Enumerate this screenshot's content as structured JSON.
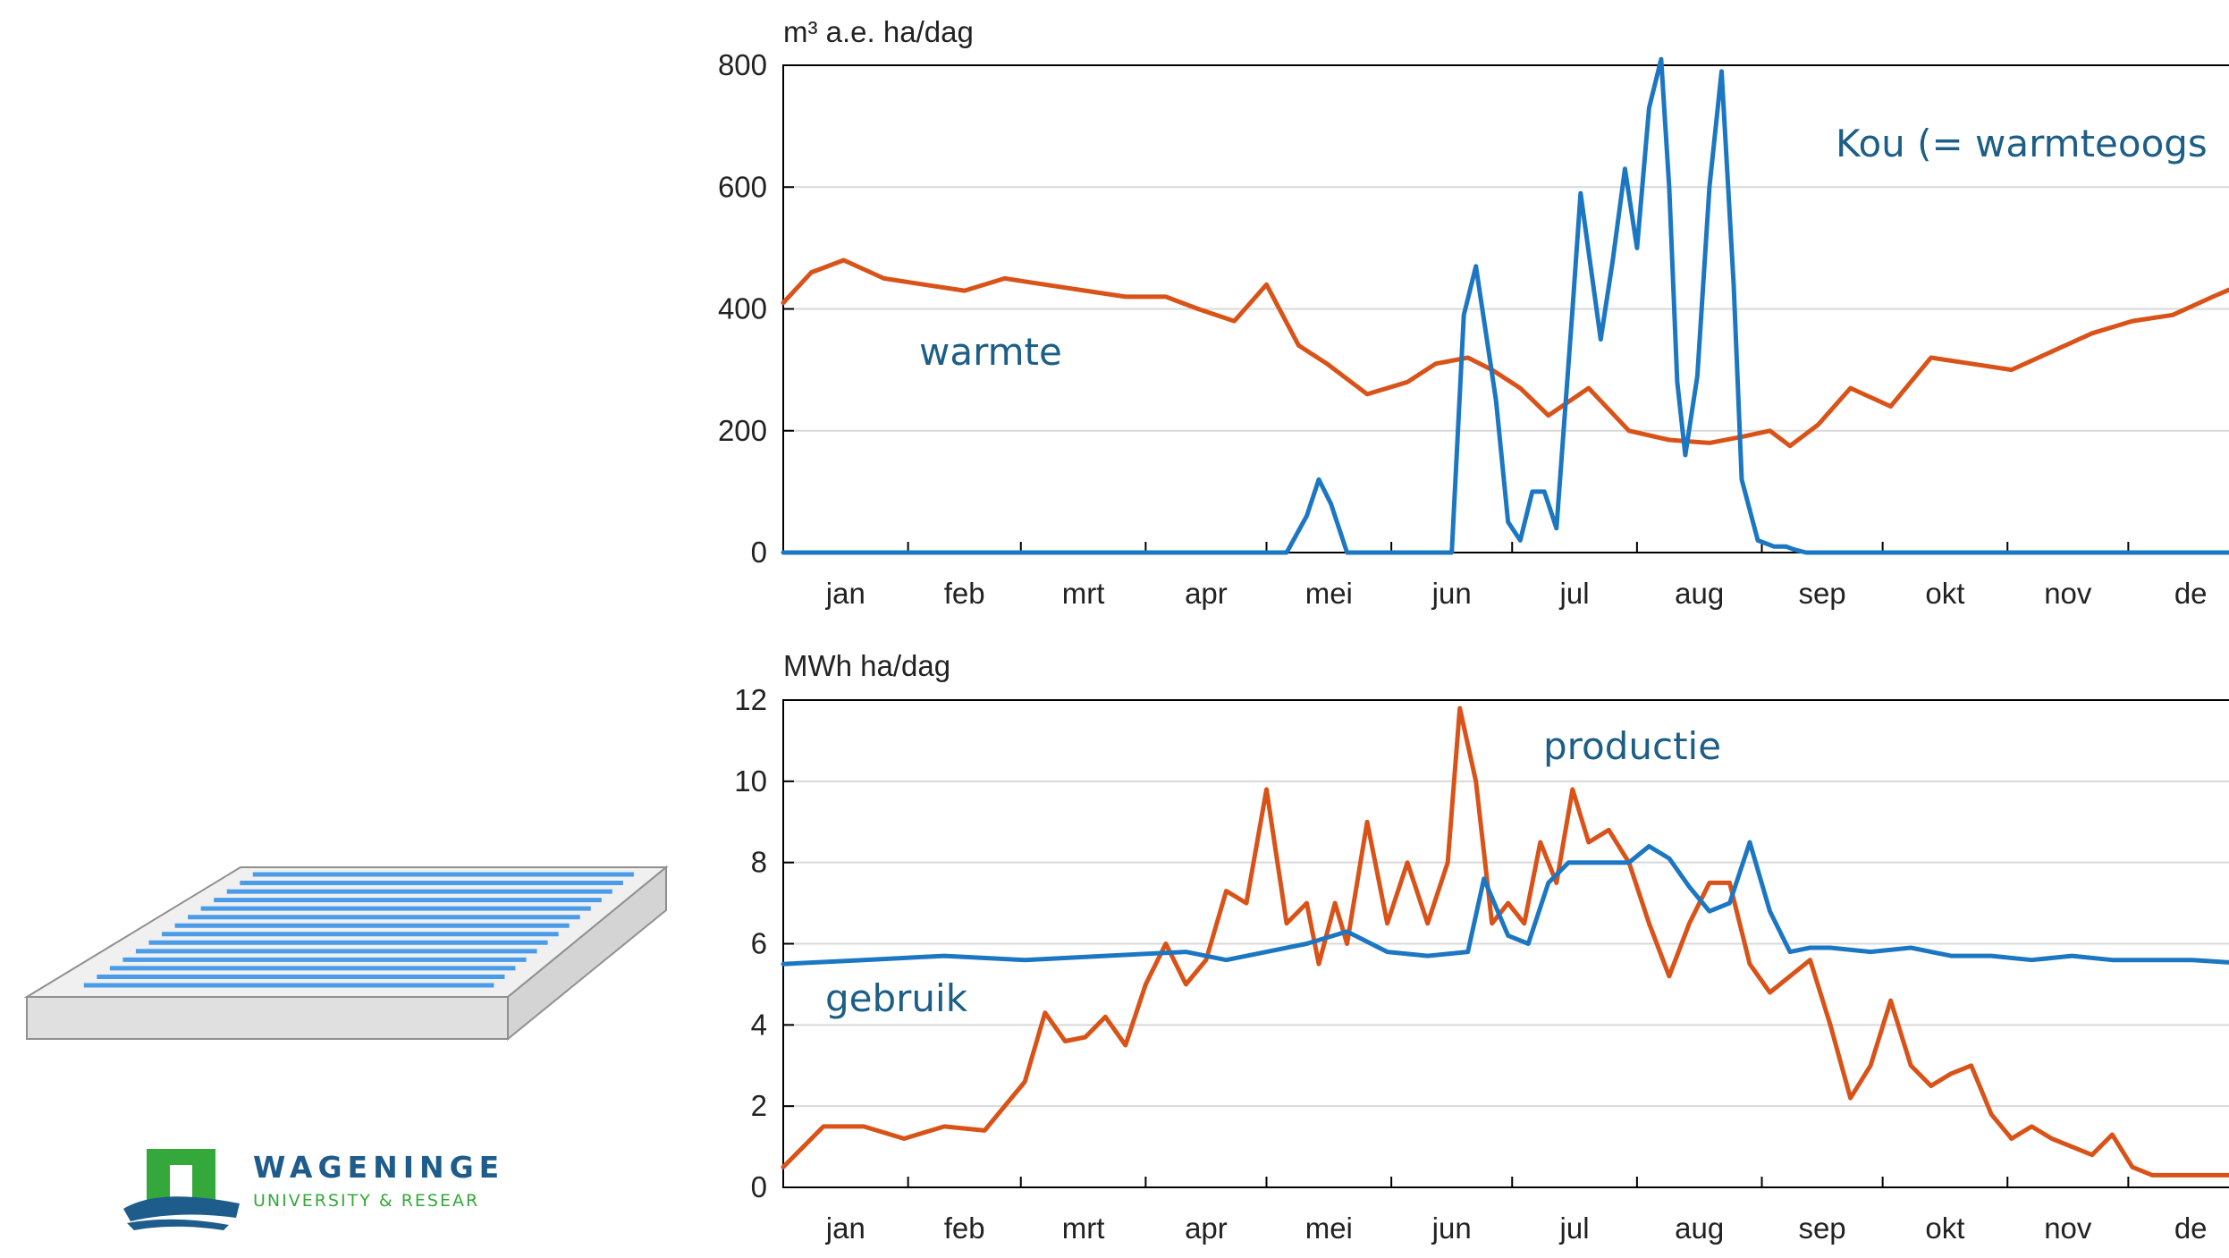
{
  "logo": {
    "line1": "WAGENINGE",
    "line2": "UNIVERSITY & RESEAR",
    "colors": {
      "green": "#34A83A",
      "blue": "#1E5C8C",
      "text": "#1E5C8C"
    }
  },
  "illustration": {
    "name": "greenhouse-roof-block",
    "stripe_color": "#4A9BE8",
    "box_color": "#E6E6E6"
  },
  "chart_data": [
    {
      "type": "line",
      "ylabel": "m³ a.e. ha/dag",
      "ylim": [
        0,
        800
      ],
      "yticks": [
        "0",
        "200",
        "400",
        "600",
        "800"
      ],
      "xticks": [
        "jan",
        "feb",
        "mrt",
        "apr",
        "mei",
        "jun",
        "jul",
        "aug",
        "sep",
        "okt",
        "nov",
        "dec"
      ],
      "xticks_visible": [
        "jan",
        "feb",
        "mrt",
        "apr",
        "mei",
        "jun",
        "jul",
        "aug",
        "sep",
        "okt",
        "nov",
        "de"
      ],
      "xlim_day": [
        0,
        365
      ],
      "grid": true,
      "series": [
        {
          "name": "warmte",
          "color": "#D95319",
          "x": [
            0,
            7,
            15,
            25,
            35,
            45,
            55,
            65,
            75,
            85,
            95,
            103,
            112,
            120,
            128,
            135,
            145,
            155,
            162,
            170,
            176,
            183,
            190,
            200,
            210,
            220,
            230,
            238,
            245,
            250,
            257,
            265,
            275,
            285,
            295,
            305,
            315,
            325,
            335,
            345,
            355,
            362
          ],
          "y": [
            410,
            460,
            480,
            450,
            440,
            430,
            450,
            440,
            430,
            420,
            420,
            400,
            380,
            440,
            340,
            310,
            260,
            280,
            310,
            320,
            300,
            270,
            225,
            270,
            200,
            185,
            180,
            190,
            200,
            175,
            210,
            270,
            240,
            320,
            310,
            300,
            330,
            360,
            380,
            390,
            420,
            440
          ]
        },
        {
          "name": "Kou (= warmteoogst)",
          "color": "#1C77C3",
          "x": [
            0,
            125,
            130,
            133,
            136,
            140,
            145,
            155,
            166,
            169,
            172,
            177,
            180,
            183,
            186,
            189,
            192,
            196,
            198,
            203,
            206,
            209,
            212,
            215,
            218,
            220,
            222,
            224,
            227,
            230,
            233,
            236,
            238,
            242,
            246,
            249,
            251,
            254,
            256,
            258,
            264,
            270,
            365
          ],
          "y": [
            0,
            0,
            60,
            120,
            80,
            0,
            0,
            0,
            0,
            390,
            470,
            250,
            50,
            20,
            100,
            100,
            40,
            400,
            590,
            350,
            480,
            630,
            500,
            730,
            810,
            600,
            280,
            160,
            290,
            600,
            790,
            440,
            120,
            20,
            10,
            10,
            5,
            0,
            0,
            0,
            0,
            0,
            0
          ]
        }
      ],
      "annotations": [
        {
          "text": "warmte",
          "color": "#1C5E86"
        },
        {
          "text": "Kou (= warmteoogst)",
          "text_visible": "Kou (= warmteoogs",
          "color": "#1C5E86"
        }
      ]
    },
    {
      "type": "line",
      "ylabel": "MWh ha/dag",
      "ylim": [
        0,
        12
      ],
      "yticks": [
        "0",
        "2",
        "4",
        "6",
        "8",
        "10",
        "12"
      ],
      "xticks": [
        "jan",
        "feb",
        "mrt",
        "apr",
        "mei",
        "jun",
        "jul",
        "aug",
        "sep",
        "okt",
        "nov",
        "dec"
      ],
      "xticks_visible": [
        "jan",
        "feb",
        "mrt",
        "apr",
        "mei",
        "jun",
        "jul",
        "aug",
        "sep",
        "okt",
        "nov",
        "de"
      ],
      "xlim_day": [
        0,
        365
      ],
      "grid": true,
      "series": [
        {
          "name": "productie",
          "color": "#D95319",
          "x": [
            0,
            10,
            20,
            30,
            40,
            50,
            60,
            65,
            70,
            75,
            80,
            85,
            90,
            95,
            100,
            105,
            110,
            115,
            120,
            125,
            130,
            133,
            137,
            140,
            145,
            150,
            155,
            160,
            165,
            168,
            172,
            176,
            180,
            184,
            188,
            192,
            196,
            200,
            205,
            210,
            215,
            220,
            225,
            230,
            235,
            240,
            245,
            250,
            255,
            260,
            265,
            270,
            275,
            280,
            285,
            290,
            295,
            300,
            305,
            310,
            315,
            320,
            325,
            330,
            335,
            340,
            345,
            350,
            355,
            360,
            365
          ],
          "y": [
            0.5,
            1.5,
            1.5,
            1.2,
            1.5,
            1.4,
            2.6,
            4.3,
            3.6,
            3.7,
            4.2,
            3.5,
            5.0,
            6.0,
            5.0,
            5.6,
            7.3,
            7.0,
            9.8,
            6.5,
            7.0,
            5.5,
            7.0,
            6.0,
            9.0,
            6.5,
            8.0,
            6.5,
            8.0,
            11.8,
            10.0,
            6.5,
            7.0,
            6.5,
            8.5,
            7.5,
            9.8,
            8.5,
            8.8,
            8.0,
            6.5,
            5.2,
            6.5,
            7.5,
            7.5,
            5.5,
            4.8,
            5.2,
            5.6,
            4.0,
            2.2,
            3.0,
            4.6,
            3.0,
            2.5,
            2.8,
            3.0,
            1.8,
            1.2,
            1.5,
            1.2,
            1.0,
            0.8,
            1.3,
            0.5,
            0.3,
            0.3,
            0.3,
            0.3,
            0.3,
            0.3
          ]
        },
        {
          "name": "gebruik",
          "color": "#1C77C3",
          "x": [
            0,
            20,
            40,
            60,
            80,
            100,
            110,
            120,
            130,
            140,
            150,
            160,
            170,
            174,
            180,
            185,
            190,
            195,
            200,
            205,
            210,
            215,
            220,
            225,
            230,
            235,
            240,
            245,
            250,
            255,
            260,
            270,
            280,
            290,
            300,
            310,
            320,
            330,
            340,
            350,
            365
          ],
          "y": [
            5.5,
            5.6,
            5.7,
            5.6,
            5.7,
            5.8,
            5.6,
            5.8,
            6.0,
            6.3,
            5.8,
            5.7,
            5.8,
            7.6,
            6.2,
            6.0,
            7.5,
            8.0,
            8.0,
            8.0,
            8.0,
            8.4,
            8.1,
            7.4,
            6.8,
            7.0,
            8.5,
            6.8,
            5.8,
            5.9,
            5.9,
            5.8,
            5.9,
            5.7,
            5.7,
            5.6,
            5.7,
            5.6,
            5.6,
            5.6,
            5.5
          ]
        }
      ],
      "annotations": [
        {
          "text": "productie",
          "color": "#1C5E86"
        },
        {
          "text": "gebruik",
          "color": "#1C5E86"
        }
      ]
    }
  ]
}
